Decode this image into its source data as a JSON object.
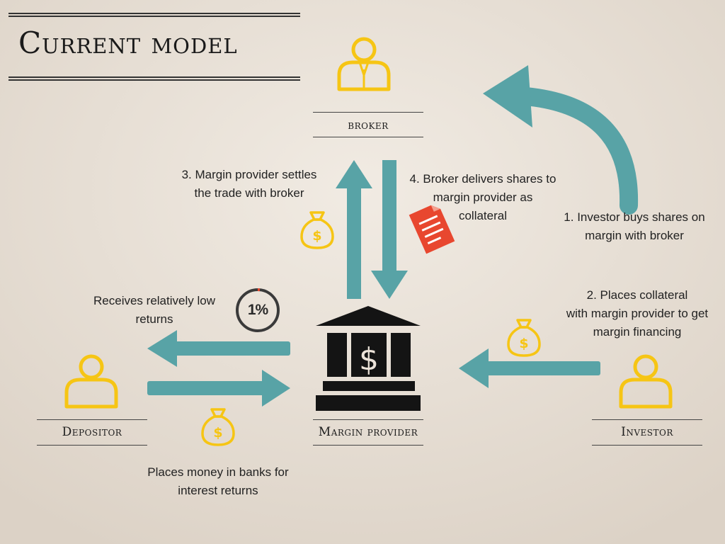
{
  "title": "Current model",
  "roles": {
    "broker": "broker",
    "depositor": "Depositor",
    "margin_provider": "Margin provider",
    "investor": "Investor"
  },
  "steps": {
    "step1": [
      "1. Investor buys shares on",
      "margin with broker"
    ],
    "step2": [
      "2. Places collateral",
      "with margin provider to get",
      "margin financing"
    ],
    "step3": [
      "3. Margin provider settles",
      "the trade with broker"
    ],
    "step4": [
      "4. Broker delivers shares to",
      "margin provider as",
      "collateral"
    ],
    "depositor_receives": [
      "Receives relatively low",
      "returns"
    ],
    "depositor_places": [
      "Places money in banks for",
      "interest returns"
    ]
  },
  "rate_badge": "1%",
  "icons": {
    "person": "person-icon",
    "money_bag": "money-bag-icon",
    "document": "document-icon",
    "bank": "bank-icon"
  },
  "colors": {
    "arrow": "#58a3a6",
    "person": "#f6c514",
    "document": "#e8472f",
    "bank": "#141414"
  }
}
